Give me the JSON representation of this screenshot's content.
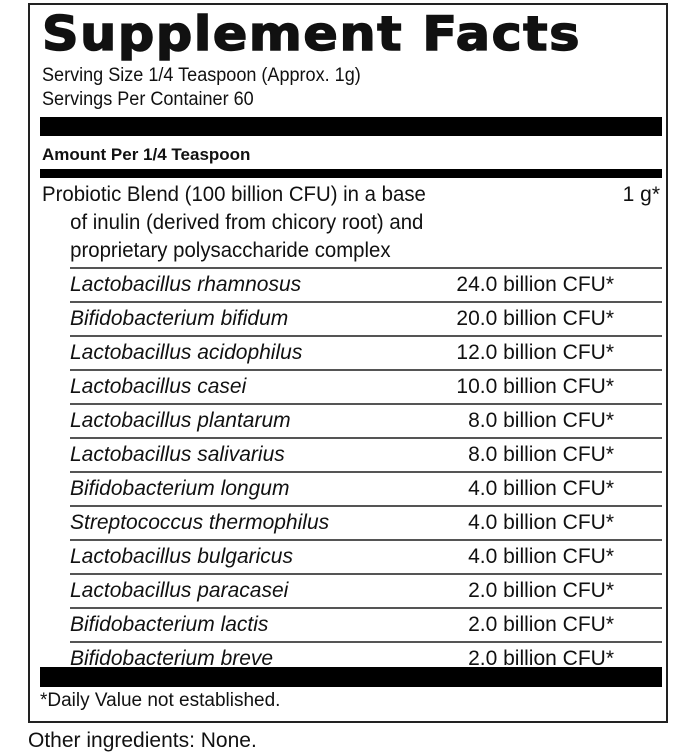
{
  "title": "Supplement Facts",
  "serving_size": "Serving Size 1/4 Teaspoon (Approx. 1g)",
  "servings_per_container": "Servings Per Container 60",
  "amount_header": "Amount Per 1/4 Teaspoon",
  "blend": {
    "lines": [
      "Probiotic Blend (100 billion CFU) in a base",
      "of inulin (derived from chicory root) and",
      "proprietary polysaccharide complex"
    ],
    "amount": "1 g*"
  },
  "ingredients": [
    {
      "name": "Lactobacillus rhamnosus",
      "amount": "24.0 billion CFU*"
    },
    {
      "name": "Bifidobacterium bifidum",
      "amount": "20.0 billion CFU*"
    },
    {
      "name": "Lactobacillus acidophilus",
      "amount": "12.0 billion CFU*"
    },
    {
      "name": "Lactobacillus casei",
      "amount": "10.0 billion CFU*"
    },
    {
      "name": "Lactobacillus plantarum",
      "amount": "8.0 billion CFU*"
    },
    {
      "name": "Lactobacillus salivarius",
      "amount": "8.0 billion CFU*"
    },
    {
      "name": "Bifidobacterium longum",
      "amount": "4.0 billion CFU*"
    },
    {
      "name": "Streptococcus thermophilus",
      "amount": "4.0 billion CFU*"
    },
    {
      "name": "Lactobacillus bulgaricus",
      "amount": "4.0 billion CFU*"
    },
    {
      "name": "Lactobacillus paracasei",
      "amount": "2.0 billion CFU*"
    },
    {
      "name": "Bifidobacterium lactis",
      "amount": "2.0 billion CFU*"
    },
    {
      "name": "Bifidobacterium breve",
      "amount": "2.0 billion CFU*"
    }
  ],
  "footnote": "*Daily Value not established.",
  "other_ingredients": "Other ingredients: None."
}
